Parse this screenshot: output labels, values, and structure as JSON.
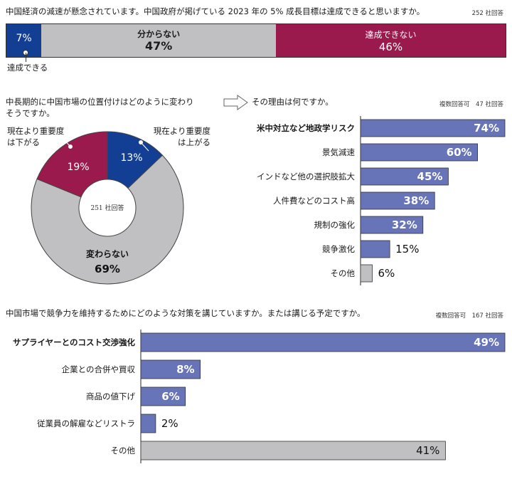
{
  "q1": {
    "question": "中国経済の減速が懸念されています。中国政府が掲げている 2023 年の 5% 成長目標は達成できると思いますか。",
    "note": "252 社回答",
    "segments": [
      {
        "label": "達成できる",
        "pct_label": "7%",
        "value": 7,
        "color": "#123f94"
      },
      {
        "label": "分からない",
        "pct_label": "47%",
        "value": 47,
        "color": "#c0c0c2"
      },
      {
        "label": "達成できない",
        "pct_label": "46%",
        "value": 46,
        "color": "#9b1a4d"
      }
    ]
  },
  "q2": {
    "question_line1": "中長期的に中国市場の位置付けはどのように変わり",
    "question_line2": "そうですか。",
    "center_label": "251 社回答",
    "chart_data": {
      "type": "pie",
      "slices": [
        {
          "label_line1": "現在より重要度",
          "label_line2": "は上がる",
          "pct_label": "13%",
          "value": 13,
          "color": "#123f94"
        },
        {
          "label_line1": "変わらない",
          "label_line2": "",
          "pct_label": "69%",
          "value": 69,
          "color": "#c0c0c2"
        },
        {
          "label_line1": "現在より重要度",
          "label_line2": "は下がる",
          "pct_label": "19%",
          "value": 19,
          "color": "#9b1a4d"
        }
      ]
    }
  },
  "q3": {
    "question": "その理由は何ですか。",
    "note": "複数回答可　47 社回答",
    "chart_data": {
      "type": "bar",
      "orientation": "horizontal",
      "categories": [
        "米中対立など地政学リスク",
        "景気減速",
        "インドなど他の選択肢拡大",
        "人件費などのコスト高",
        "規制の強化",
        "競争激化",
        "その他"
      ],
      "values": [
        74,
        60,
        45,
        38,
        32,
        15,
        6
      ],
      "value_labels": [
        "74%",
        "60%",
        "45%",
        "38%",
        "32%",
        "15%",
        "6%"
      ],
      "xlim": [
        0,
        74
      ]
    }
  },
  "q4": {
    "question": "中国市場で競争力を維持するためにどのような対策を講じていますか。または講じる予定ですか。",
    "note": "複数回答可　167 社回答",
    "chart_data": {
      "type": "bar",
      "orientation": "horizontal",
      "categories": [
        "サプライヤーとのコスト交渉強化",
        "企業との合併や買収",
        "商品の値下げ",
        "従業員の解雇などリストラ",
        "その他"
      ],
      "values": [
        49,
        8,
        6,
        2,
        41
      ],
      "value_labels": [
        "49%",
        "8%",
        "6%",
        "2%",
        "41%"
      ],
      "xlim": [
        0,
        49
      ]
    }
  },
  "colors": {
    "blue_bar": "#6874b8",
    "gray_bar": "#c0c0c2",
    "blue": "#123f94",
    "crimson": "#9b1a4d"
  }
}
